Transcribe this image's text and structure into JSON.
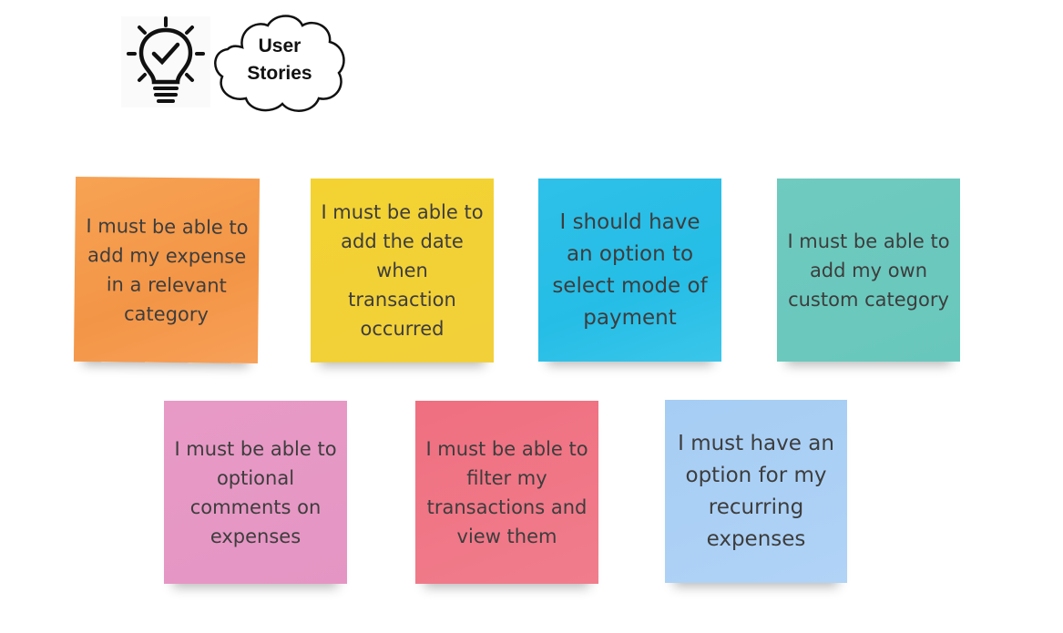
{
  "header": {
    "cloud_label": "User\nStories"
  },
  "notes": [
    {
      "text": "I must be able to add my expense in a relevant category",
      "color": "#f59a4d"
    },
    {
      "text": "I must be able to add the date when transaction occurred",
      "color": "#f2d136"
    },
    {
      "text": "I should have an option to select mode of payment",
      "color": "#29bfe7"
    },
    {
      "text": "I must be able to add my own custom category",
      "color": "#6bc8bd"
    },
    {
      "text": "I must be able to optional comments on expenses",
      "color": "#e798c4"
    },
    {
      "text": "I must be able to filter my transactions and view them",
      "color": "#ef7686"
    },
    {
      "text": "I must have an option for my recurring expenses",
      "color": "#abd0f5"
    }
  ],
  "icons": {
    "bulb": "lightbulb-check-icon",
    "cloud": "cloud-shape"
  }
}
